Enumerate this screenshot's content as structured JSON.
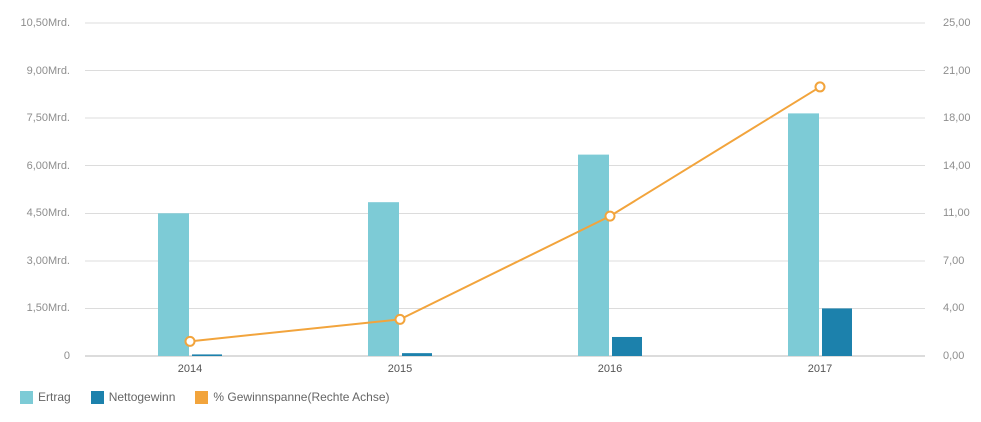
{
  "chart_data": {
    "type": "combo-bar-line",
    "title": "",
    "categories": [
      "2014",
      "2015",
      "2016",
      "2017"
    ],
    "series": [
      {
        "name": "Ertrag",
        "type": "bar",
        "axis": "left",
        "color": "#7DCBD6",
        "values": [
          4.5,
          4.85,
          6.35,
          7.65
        ]
      },
      {
        "name": "Nettogewinn",
        "type": "bar",
        "axis": "left",
        "color": "#1C81AC",
        "values": [
          0.05,
          0.09,
          0.6,
          1.5
        ]
      },
      {
        "name": "% Gewinnspanne(Rechte Achse)",
        "type": "line",
        "axis": "right",
        "color": "#F2A43C",
        "values": [
          1.1,
          2.75,
          10.5,
          20.2
        ]
      }
    ],
    "left_axis": {
      "min": 0,
      "max": 10.5,
      "tick_labels_bottom_up": [
        "0",
        "1,50Mrd.",
        "3,00Mrd.",
        "4,50Mrd.",
        "6,00Mrd.",
        "7,50Mrd.",
        "9,00Mrd.",
        "10,50Mrd."
      ]
    },
    "right_axis": {
      "min": 0,
      "max": 25,
      "tick_labels_bottom_up": [
        "0,00",
        "4,00",
        "7,00",
        "11,00",
        "14,00",
        "18,00",
        "21,00",
        "25,00"
      ]
    },
    "grid": true,
    "legend_position": "bottom-left",
    "line_marker": "open-circle",
    "colors": {
      "grid": "#DCDCDC",
      "axis_label": "#8E8E8E",
      "x_label": "#555555",
      "legend_text": "#666666",
      "background": "#FFFFFF"
    }
  }
}
